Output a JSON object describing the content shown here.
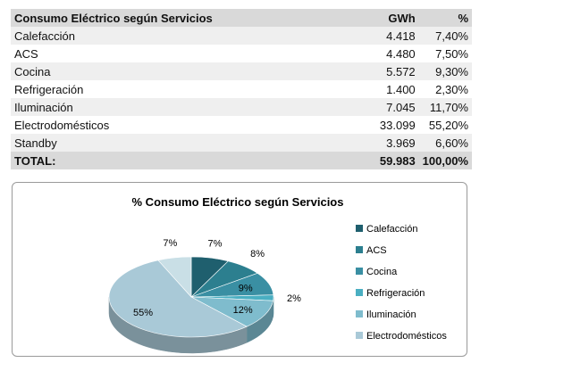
{
  "table": {
    "headers": [
      "Consumo Eléctrico según Servicios",
      "GWh",
      "%"
    ],
    "rows": [
      [
        "Calefacción",
        "4.418",
        "7,40%"
      ],
      [
        "ACS",
        "4.480",
        "7,50%"
      ],
      [
        "Cocina",
        "5.572",
        "9,30%"
      ],
      [
        "Refrigeración",
        "1.400",
        "2,30%"
      ],
      [
        "Iluminación",
        "7.045",
        "11,70%"
      ],
      [
        "Electrodomésticos",
        "33.099",
        "55,20%"
      ],
      [
        "Standby",
        "3.969",
        "6,60%"
      ]
    ],
    "total": [
      "TOTAL:",
      "59.983",
      "100,00%"
    ]
  },
  "chart_data": {
    "type": "pie",
    "title": "% Consumo Eléctrico según Servicios",
    "categories": [
      "Calefacción",
      "ACS",
      "Cocina",
      "Refrigeración",
      "Iluminación",
      "Electrodomésticos",
      "Standby"
    ],
    "values": [
      7.4,
      7.5,
      9.3,
      2.3,
      11.7,
      55.2,
      6.6
    ],
    "data_labels": [
      "7%",
      "8%",
      "9%",
      "2%",
      "12%",
      "55%",
      "7%"
    ],
    "legend_entries": [
      "Calefacción",
      "ACS",
      "Cocina",
      "Refrigeración",
      "Iluminación",
      "Electrodomésticos"
    ],
    "legend_position": "right",
    "style": "3d",
    "colors": [
      "#1f5f6e",
      "#2c7f8f",
      "#3a8fa3",
      "#4aafc2",
      "#7fbccd",
      "#a9c9d7",
      "#c9dfe6"
    ]
  }
}
